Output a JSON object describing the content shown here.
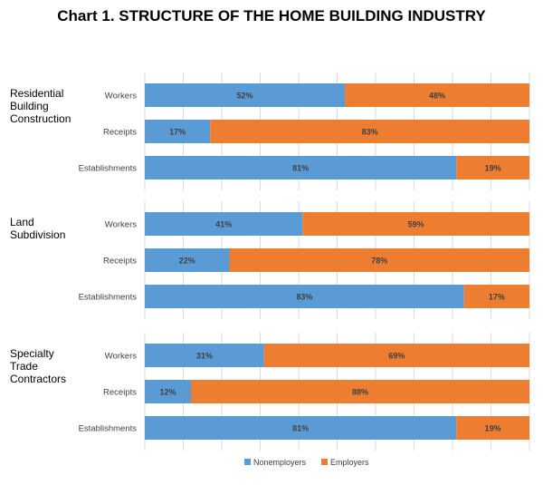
{
  "chart_data": {
    "type": "bar",
    "orientation": "horizontal",
    "stacked": "100%",
    "title": "Chart 1. STRUCTURE OF THE HOME BUILDING INDUSTRY",
    "grid": true,
    "legend_position": "bottom",
    "colors": {
      "Nonemployers": "#5b9bd5",
      "Employers": "#ed7d31"
    },
    "series_names": [
      "Nonemployers",
      "Employers"
    ],
    "groups": [
      {
        "name": "Residential Building Construction",
        "name_lines": [
          "Residential",
          "Building",
          "Construction"
        ],
        "rows": [
          {
            "label": "Workers",
            "values": [
              52,
              48
            ]
          },
          {
            "label": "Receipts",
            "values": [
              17,
              83
            ]
          },
          {
            "label": "Establishments",
            "values": [
              81,
              19
            ]
          }
        ]
      },
      {
        "name": "Land Subdivision",
        "name_lines": [
          "Land",
          "Subdivision"
        ],
        "rows": [
          {
            "label": "Workers",
            "values": [
              41,
              59
            ]
          },
          {
            "label": "Receipts",
            "values": [
              22,
              78
            ]
          },
          {
            "label": "Establishments",
            "values": [
              83,
              17
            ]
          }
        ]
      },
      {
        "name": "Specialty Trade Contractors",
        "name_lines": [
          "Specialty",
          "Trade",
          "Contractors"
        ],
        "rows": [
          {
            "label": "Workers",
            "values": [
              31,
              69
            ]
          },
          {
            "label": "Receipts",
            "values": [
              12,
              88
            ]
          },
          {
            "label": "Establishments",
            "values": [
              81,
              19
            ]
          }
        ]
      }
    ]
  }
}
